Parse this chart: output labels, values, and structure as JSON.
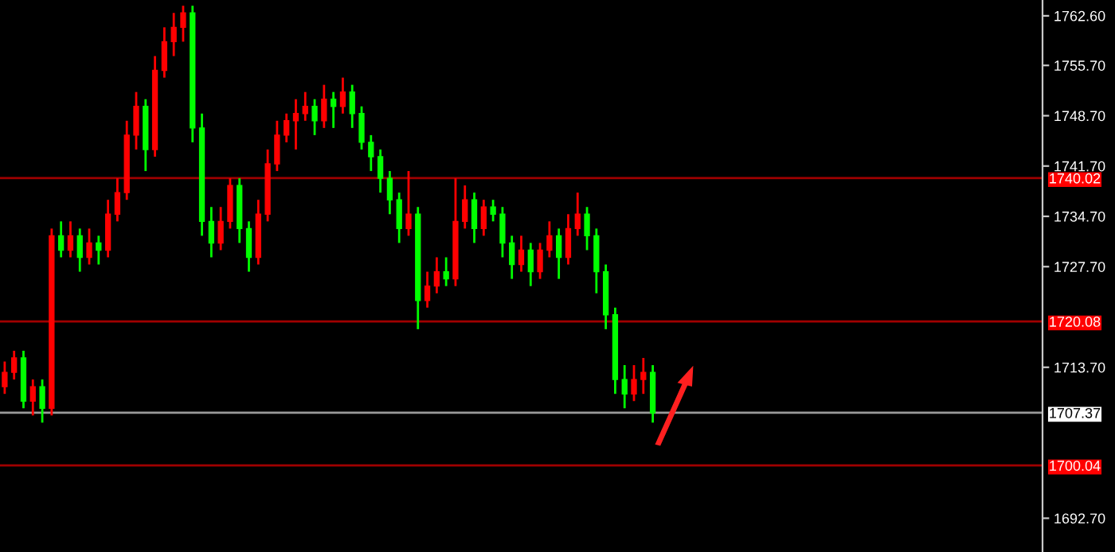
{
  "chart_data": {
    "type": "candlestick",
    "categories": [
      null,
      null,
      null,
      null,
      null,
      null,
      null,
      null,
      null,
      null,
      null,
      null,
      null,
      null,
      null,
      null,
      null,
      null,
      null,
      null,
      null,
      null,
      null,
      null,
      null,
      null,
      null,
      null,
      null,
      null,
      null,
      null,
      null,
      null,
      null,
      null,
      null,
      null,
      null,
      null,
      null,
      null,
      null,
      null,
      null,
      null,
      null,
      null,
      null,
      null,
      null,
      null,
      null,
      null,
      null,
      null,
      null,
      null,
      null,
      null,
      null,
      null,
      null,
      null,
      null,
      null,
      null,
      null,
      null,
      null,
      null,
      null,
      null,
      null,
      null,
      null,
      null,
      null,
      null,
      null,
      null,
      null,
      null,
      null,
      null,
      null,
      null,
      null,
      null,
      null,
      null,
      null,
      null,
      null,
      null,
      null,
      null,
      null,
      null,
      null,
      null,
      null,
      null,
      null,
      null,
      null,
      null,
      null,
      null,
      null,
      null
    ],
    "ohlc": [
      [
        1711,
        1714.5,
        1710,
        1713
      ],
      [
        1713,
        1716,
        1712,
        1715
      ],
      [
        1715,
        1716,
        1708,
        1709
      ],
      [
        1709,
        1712,
        1707,
        1711
      ],
      [
        1711,
        1712,
        1706,
        1708
      ],
      [
        1708,
        1733,
        1707,
        1732
      ],
      [
        1732,
        1734,
        1729,
        1730
      ],
      [
        1730,
        1734,
        1729,
        1732
      ],
      [
        1732,
        1733,
        1727,
        1729
      ],
      [
        1729,
        1733,
        1728,
        1731
      ],
      [
        1731,
        1732,
        1728,
        1730
      ],
      [
        1730,
        1737,
        1729,
        1735
      ],
      [
        1735,
        1740,
        1734,
        1738
      ],
      [
        1738,
        1748,
        1737,
        1746
      ],
      [
        1746,
        1752,
        1744,
        1750
      ],
      [
        1750,
        1751,
        1741,
        1744
      ],
      [
        1744,
        1757,
        1743,
        1755
      ],
      [
        1755,
        1761,
        1754,
        1759
      ],
      [
        1759,
        1763,
        1757,
        1761
      ],
      [
        1761,
        1764,
        1759,
        1763
      ],
      [
        1763,
        1764,
        1745,
        1747
      ],
      [
        1747,
        1749,
        1732,
        1734
      ],
      [
        1734,
        1736,
        1729,
        1731
      ],
      [
        1731,
        1736,
        1730,
        1734
      ],
      [
        1734,
        1740,
        1733,
        1739
      ],
      [
        1739,
        1740,
        1731,
        1733
      ],
      [
        1733,
        1734,
        1727,
        1729
      ],
      [
        1729,
        1737,
        1728,
        1735
      ],
      [
        1735,
        1744,
        1734,
        1742
      ],
      [
        1742,
        1748,
        1741,
        1746
      ],
      [
        1746,
        1749,
        1745,
        1748
      ],
      [
        1748,
        1751,
        1744,
        1749
      ],
      [
        1749,
        1752,
        1748,
        1750
      ],
      [
        1750,
        1751,
        1746,
        1748
      ],
      [
        1748,
        1753,
        1747,
        1751
      ],
      [
        1751,
        1752,
        1747,
        1750
      ],
      [
        1750,
        1754,
        1749,
        1752
      ],
      [
        1752,
        1753,
        1747,
        1749
      ],
      [
        1749,
        1750,
        1744,
        1745
      ],
      [
        1745,
        1746,
        1741,
        1743
      ],
      [
        1743,
        1744,
        1738,
        1740
      ],
      [
        1740,
        1741,
        1735,
        1737
      ],
      [
        1737,
        1738,
        1731,
        1733
      ],
      [
        1733,
        1741,
        1732,
        1735
      ],
      [
        1735,
        1736,
        1719,
        1723
      ],
      [
        1723,
        1727,
        1722,
        1725
      ],
      [
        1725,
        1729,
        1724,
        1727
      ],
      [
        1727,
        1729,
        1725,
        1726
      ],
      [
        1726,
        1740,
        1725,
        1734
      ],
      [
        1734,
        1739,
        1733,
        1737
      ],
      [
        1737,
        1738,
        1731,
        1733
      ],
      [
        1733,
        1737,
        1732,
        1736
      ],
      [
        1736,
        1737,
        1734,
        1735
      ],
      [
        1735,
        1736,
        1729,
        1731
      ],
      [
        1731,
        1732,
        1726,
        1728
      ],
      [
        1728,
        1732,
        1727,
        1730
      ],
      [
        1730,
        1731,
        1725,
        1727
      ],
      [
        1727,
        1731,
        1726,
        1730
      ],
      [
        1730,
        1734,
        1729,
        1732
      ],
      [
        1732,
        1733,
        1726,
        1729
      ],
      [
        1729,
        1735,
        1728,
        1733
      ],
      [
        1733,
        1738,
        1732,
        1735
      ],
      [
        1735,
        1736,
        1730,
        1732
      ],
      [
        1732,
        1733,
        1724,
        1727
      ],
      [
        1727,
        1728,
        1719,
        1721
      ],
      [
        1721,
        1722,
        1710,
        1712
      ],
      [
        1712,
        1714,
        1708,
        1710
      ],
      [
        1710,
        1714,
        1709,
        1712
      ],
      [
        1712,
        1715,
        1710,
        1713
      ],
      [
        1713,
        1714,
        1706,
        1707.37
      ],
      null,
      null,
      null,
      null,
      null,
      null,
      null,
      null,
      null,
      null,
      null,
      null,
      null,
      null,
      null,
      null,
      null,
      null,
      null,
      null,
      null,
      null,
      null,
      null,
      null,
      null,
      null,
      null,
      null,
      null,
      null,
      null,
      null,
      null,
      null,
      null,
      null,
      null,
      null,
      null,
      null
    ],
    "colors": [
      "#ff0000",
      "#ff0000",
      "#00ff00",
      "#ff0000",
      "#00ff00",
      "#ff0000",
      "#00ff00",
      "#ff0000",
      "#00ff00",
      "#ff0000",
      "#00ff00",
      "#ff0000",
      "#ff0000",
      "#ff0000",
      "#ff0000",
      "#00ff00",
      "#ff0000",
      "#ff0000",
      "#ff0000",
      "#ff0000",
      "#00ff00",
      "#00ff00",
      "#00ff00",
      "#ff0000",
      "#ff0000",
      "#00ff00",
      "#00ff00",
      "#ff0000",
      "#ff0000",
      "#ff0000",
      "#ff0000",
      "#ff0000",
      "#ff0000",
      "#00ff00",
      "#ff0000",
      "#00ff00",
      "#ff0000",
      "#00ff00",
      "#00ff00",
      "#00ff00",
      "#00ff00",
      "#00ff00",
      "#00ff00",
      "#ff0000",
      "#00ff00",
      "#ff0000",
      "#ff0000",
      "#00ff00",
      "#ff0000",
      "#ff0000",
      "#00ff00",
      "#ff0000",
      "#00ff00",
      "#00ff00",
      "#00ff00",
      "#ff0000",
      "#00ff00",
      "#ff0000",
      "#ff0000",
      "#00ff00",
      "#ff0000",
      "#ff0000",
      "#00ff00",
      "#00ff00",
      "#00ff00",
      "#00ff00",
      "#00ff00",
      "#ff0000",
      "#ff0000",
      "#00ff00",
      null,
      null,
      null,
      null,
      null,
      null,
      null,
      null,
      null,
      null,
      null,
      null,
      null,
      null,
      null,
      null,
      null,
      null,
      null,
      null,
      null,
      null,
      null,
      null,
      null,
      null,
      null,
      null,
      null,
      null,
      null,
      null,
      null,
      null,
      null,
      null,
      null,
      null,
      null,
      null,
      null
    ],
    "ylim": [
      1688.0,
      1764.8
    ],
    "yticks": [
      {
        "value": 1762.6,
        "label": "1762.60"
      },
      {
        "value": 1755.7,
        "label": "1755.70"
      },
      {
        "value": 1748.7,
        "label": "1748.70"
      },
      {
        "value": 1741.7,
        "label": "1741.70"
      },
      {
        "value": 1734.7,
        "label": "1734.70"
      },
      {
        "value": 1727.7,
        "label": "1727.70"
      },
      {
        "value": 1713.7,
        "label": "1713.70"
      },
      {
        "value": 1692.7,
        "label": "1692.70"
      }
    ],
    "ref_lines": [
      {
        "axis": "y",
        "value": 1740.02,
        "label": "1740.02",
        "color": "#a00000"
      },
      {
        "axis": "y",
        "value": 1720.08,
        "label": "1720.08",
        "color": "#a00000"
      },
      {
        "axis": "y",
        "value": 1707.37,
        "label": "1707.37",
        "color": "#9a9a9a"
      },
      {
        "axis": "y",
        "value": 1700.04,
        "label": "1700.04",
        "color": "#a00000"
      }
    ],
    "tick_labels": "y",
    "grid": false
  }
}
